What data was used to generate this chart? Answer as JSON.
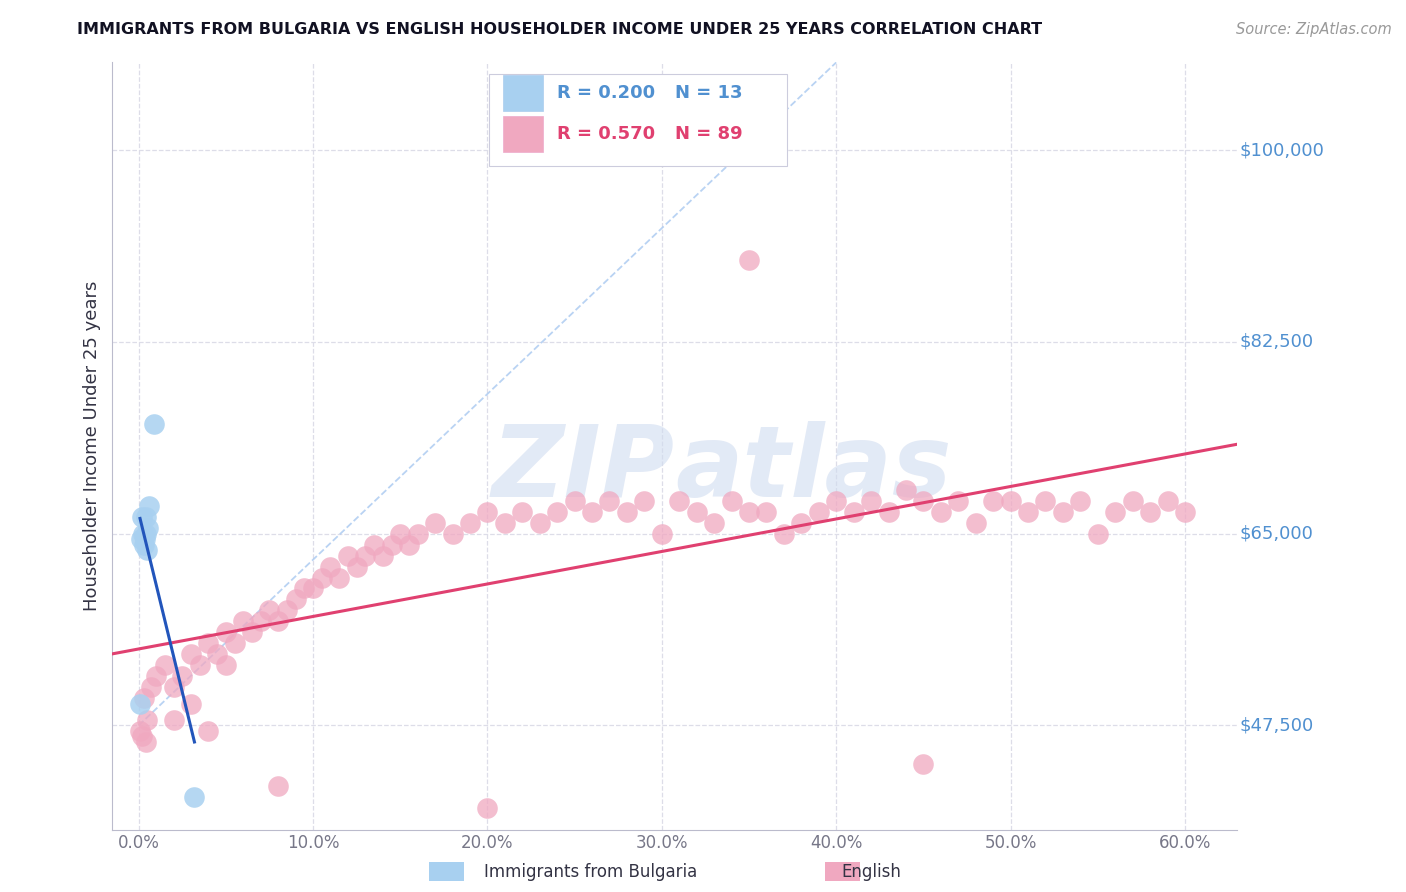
{
  "title": "IMMIGRANTS FROM BULGARIA VS ENGLISH HOUSEHOLDER INCOME UNDER 25 YEARS CORRELATION CHART",
  "source": "Source: ZipAtlas.com",
  "ylabel": "Householder Income Under 25 years",
  "ylabel_vals": [
    47500,
    65000,
    82500,
    100000
  ],
  "ylabel_labels": [
    "$47,500",
    "$65,000",
    "$82,500",
    "$100,000"
  ],
  "xtick_vals": [
    0,
    10,
    20,
    30,
    40,
    50,
    60
  ],
  "xtick_labels": [
    "0.0%",
    "10.0%",
    "20.0%",
    "30.0%",
    "40.0%",
    "50.0%",
    "60.0%"
  ],
  "ylim": [
    38000,
    108000
  ],
  "xlim": [
    -1.5,
    63.0
  ],
  "legend1_R": "0.200",
  "legend1_N": "13",
  "legend2_R": "0.570",
  "legend2_N": "89",
  "color_bulgaria": "#A8D0F0",
  "color_english": "#F0A8C0",
  "color_line_bulgaria": "#2255BB",
  "color_line_english": "#E04070",
  "color_dashed": "#A8C8F0",
  "color_axis_right": "#5090D0",
  "color_text": "#333344",
  "color_source": "#999999",
  "color_grid": "#DDDDE8",
  "watermark_color": "#D0DCF0",
  "bg_color": "#FFFFFF",
  "bul_x": [
    0.08,
    0.15,
    0.2,
    0.25,
    0.3,
    0.35,
    0.4,
    0.45,
    0.5,
    0.55,
    0.6,
    0.9,
    3.2
  ],
  "bul_y": [
    49500,
    64500,
    66500,
    65000,
    64000,
    64500,
    66500,
    65000,
    63500,
    65500,
    67500,
    75000,
    41000
  ],
  "eng_x": [
    0.1,
    0.3,
    0.5,
    0.7,
    1.0,
    1.5,
    2.0,
    2.5,
    3.0,
    3.5,
    4.0,
    4.5,
    5.0,
    5.5,
    6.0,
    6.5,
    7.0,
    7.5,
    8.0,
    8.5,
    9.0,
    9.5,
    10.0,
    10.5,
    11.0,
    11.5,
    12.0,
    12.5,
    13.0,
    13.5,
    14.0,
    14.5,
    15.0,
    15.5,
    16.0,
    17.0,
    18.0,
    19.0,
    20.0,
    21.0,
    22.0,
    23.0,
    24.0,
    25.0,
    26.0,
    27.0,
    28.0,
    29.0,
    30.0,
    31.0,
    32.0,
    33.0,
    34.0,
    35.0,
    36.0,
    37.0,
    38.0,
    39.0,
    40.0,
    41.0,
    42.0,
    43.0,
    44.0,
    45.0,
    46.0,
    47.0,
    48.0,
    49.0,
    50.0,
    51.0,
    52.0,
    53.0,
    54.0,
    55.0,
    56.0,
    57.0,
    58.0,
    59.0,
    60.0,
    0.2,
    0.4,
    2.0,
    3.0,
    4.0,
    5.0,
    8.0,
    20.0,
    35.0,
    45.0
  ],
  "eng_y": [
    47000,
    50000,
    48000,
    51000,
    52000,
    53000,
    51000,
    52000,
    54000,
    53000,
    55000,
    54000,
    56000,
    55000,
    57000,
    56000,
    57000,
    58000,
    57000,
    58000,
    59000,
    60000,
    60000,
    61000,
    62000,
    61000,
    63000,
    62000,
    63000,
    64000,
    63000,
    64000,
    65000,
    64000,
    65000,
    66000,
    65000,
    66000,
    67000,
    66000,
    67000,
    66000,
    67000,
    68000,
    67000,
    68000,
    67000,
    68000,
    65000,
    68000,
    67000,
    66000,
    68000,
    67000,
    67000,
    65000,
    66000,
    67000,
    68000,
    67000,
    68000,
    67000,
    69000,
    68000,
    67000,
    68000,
    66000,
    68000,
    68000,
    67000,
    68000,
    67000,
    68000,
    65000,
    67000,
    68000,
    67000,
    68000,
    67000,
    46500,
    46000,
    48000,
    49500,
    47000,
    53000,
    42000,
    40000,
    90000,
    44000
  ]
}
